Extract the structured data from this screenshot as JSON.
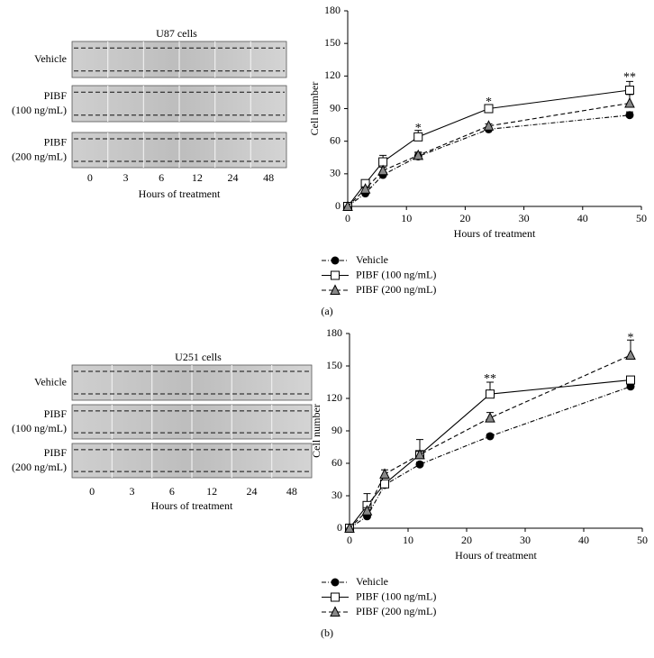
{
  "chart_data": [
    {
      "type": "line",
      "label": "(a)",
      "x_label": "Hours of treatment",
      "y_label": "Cell number",
      "x": [
        0,
        3,
        6,
        12,
        24,
        48
      ],
      "xlim": [
        0,
        50
      ],
      "xticks": [
        0,
        10,
        20,
        30,
        40,
        50
      ],
      "ylim": [
        0,
        180
      ],
      "yticks": [
        0,
        30,
        60,
        90,
        120,
        150,
        180
      ],
      "legend": "bottom",
      "series": [
        {
          "name": "Vehicle",
          "color": "#000000",
          "marker": "circle",
          "dash": "dashdot",
          "values": [
            0,
            12,
            29,
            46,
            71,
            84
          ],
          "errors": [
            0,
            2,
            2,
            3,
            2,
            3
          ]
        },
        {
          "name": "PIBF (100 ng/mL)",
          "color": "#000000",
          "marker": "square",
          "dash": "solid",
          "values": [
            0,
            21,
            41,
            64,
            90,
            107
          ],
          "errors": [
            0,
            2,
            6,
            6,
            3,
            8
          ]
        },
        {
          "name": "PIBF (200 ng/mL)",
          "color": "#000000",
          "marker": "triangle",
          "dash": "dashed",
          "values": [
            0,
            16,
            33,
            47,
            74,
            95
          ],
          "errors": [
            0,
            2,
            3,
            3,
            2,
            8
          ]
        }
      ],
      "annotations": [
        {
          "text": "*",
          "x": 12,
          "y": 74
        },
        {
          "text": "*",
          "x": 24,
          "y": 98
        },
        {
          "text": "**",
          "x": 48,
          "y": 121
        }
      ]
    },
    {
      "type": "line",
      "label": "(b)",
      "x_label": "Hours of treatment",
      "y_label": "Cell number",
      "x": [
        0,
        3,
        6,
        12,
        24,
        48
      ],
      "xlim": [
        0,
        50
      ],
      "xticks": [
        0,
        10,
        20,
        30,
        40,
        50
      ],
      "ylim": [
        0,
        180
      ],
      "yticks": [
        0,
        30,
        60,
        90,
        120,
        150,
        180
      ],
      "legend": "bottom",
      "series": [
        {
          "name": "Vehicle",
          "color": "#000000",
          "marker": "circle",
          "dash": "dashdot",
          "values": [
            0,
            11,
            40,
            59,
            85,
            131
          ],
          "errors": [
            0,
            2,
            2,
            2,
            2,
            3
          ]
        },
        {
          "name": "PIBF (100 ng/mL)",
          "color": "#000000",
          "marker": "square",
          "dash": "solid",
          "values": [
            0,
            21,
            41,
            68,
            124,
            137
          ],
          "errors": [
            0,
            11,
            3,
            14,
            11,
            3
          ]
        },
        {
          "name": "PIBF (200 ng/mL)",
          "color": "#000000",
          "marker": "triangle",
          "dash": "dashed",
          "values": [
            0,
            16,
            50,
            68,
            102,
            160
          ],
          "errors": [
            0,
            3,
            4,
            3,
            5,
            14
          ]
        }
      ],
      "annotations": [
        {
          "text": "**",
          "x": 24,
          "y": 140
        },
        {
          "text": "*",
          "x": 48,
          "y": 178
        }
      ]
    }
  ],
  "image_panels": [
    {
      "title": "U87 cells",
      "rows": [
        [
          "Vehicle"
        ],
        [
          "PIBF",
          "(100 ng/mL)"
        ],
        [
          "PIBF",
          "(200 ng/mL)"
        ]
      ],
      "times": [
        "0",
        "3",
        "6",
        "12",
        "24",
        "48"
      ],
      "x_label": "Hours of treatment"
    },
    {
      "title": "U251 cells",
      "rows": [
        [
          "Vehicle"
        ],
        [
          "PIBF",
          "(100 ng/mL)"
        ],
        [
          "PIBF",
          "(200 ng/mL)"
        ]
      ],
      "times": [
        "0",
        "3",
        "6",
        "12",
        "24",
        "48"
      ],
      "x_label": "Hours of treatment"
    }
  ]
}
